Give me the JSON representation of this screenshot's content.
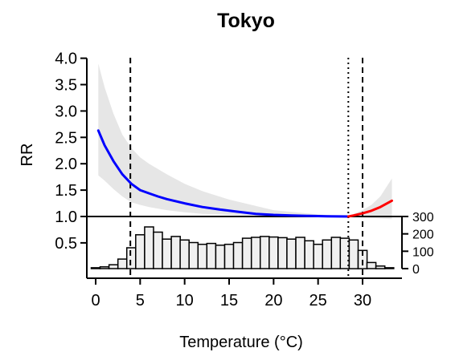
{
  "chart_data": {
    "type": "line",
    "title": "Tokyo",
    "xlabel": "Temperature (°C)",
    "ylabel": "RR",
    "xlim": [
      -0.5,
      34.5
    ],
    "ylim": [
      1.0,
      4.0
    ],
    "x_ticks": [
      0,
      5,
      10,
      15,
      20,
      25,
      30
    ],
    "y_ticks": [
      1.0,
      1.5,
      2.0,
      2.5,
      3.0,
      3.5,
      4.0
    ],
    "y_tick_labels": [
      "1.0",
      "1.5",
      "2.0",
      "2.5",
      "3.0",
      "3.5",
      "4.0"
    ],
    "extra_y_ticks": [
      0.5
    ],
    "extra_y_tick_labels": [
      "0.5"
    ],
    "mmt": 28.4,
    "dashed_lines": [
      3.9,
      30.0
    ],
    "curve_cold": {
      "color": "#0000ff",
      "x": [
        0.3,
        1,
        2,
        3,
        4,
        5,
        6,
        7,
        8,
        10,
        12,
        14,
        16,
        18,
        20,
        22,
        24,
        26,
        28.4
      ],
      "y": [
        2.63,
        2.35,
        2.05,
        1.8,
        1.62,
        1.5,
        1.44,
        1.38,
        1.33,
        1.25,
        1.18,
        1.13,
        1.09,
        1.05,
        1.03,
        1.02,
        1.01,
        1.005,
        1.0
      ]
    },
    "curve_hot": {
      "color": "#ff0000",
      "x": [
        28.4,
        29,
        30,
        31,
        32,
        33.3
      ],
      "y": [
        1.0,
        1.02,
        1.06,
        1.11,
        1.18,
        1.3
      ]
    },
    "ci": {
      "color": "#e6e6e6",
      "x": [
        0.3,
        1,
        2,
        3,
        4,
        5,
        6,
        8,
        10,
        12,
        15,
        20,
        25,
        28.4,
        29,
        30,
        31,
        32,
        33.3
      ],
      "upper": [
        3.9,
        3.45,
        2.95,
        2.55,
        2.3,
        2.12,
        2.0,
        1.8,
        1.62,
        1.48,
        1.32,
        1.12,
        1.04,
        1.0,
        1.05,
        1.12,
        1.22,
        1.38,
        1.72
      ],
      "lower": [
        1.78,
        1.68,
        1.52,
        1.38,
        1.27,
        1.22,
        1.18,
        1.12,
        1.08,
        1.05,
        1.03,
        1.01,
        1.005,
        1.0,
        0.99,
        0.98,
        0.97,
        0.96,
        0.95
      ]
    },
    "histogram": {
      "bin_width": 1,
      "bin_starts": [
        -0.5,
        0.5,
        1.5,
        2.5,
        3.5,
        4.5,
        5.5,
        6.5,
        7.5,
        8.5,
        9.5,
        10.5,
        11.5,
        12.5,
        13.5,
        14.5,
        15.5,
        16.5,
        17.5,
        18.5,
        19.5,
        20.5,
        21.5,
        22.5,
        23.5,
        24.5,
        25.5,
        26.5,
        27.5,
        28.5,
        29.5,
        30.5,
        31.5,
        32.5
      ],
      "counts": [
        5,
        10,
        22,
        55,
        120,
        195,
        240,
        210,
        170,
        185,
        165,
        150,
        140,
        145,
        135,
        140,
        150,
        175,
        180,
        185,
        182,
        178,
        170,
        180,
        160,
        140,
        165,
        180,
        175,
        165,
        105,
        35,
        15,
        5
      ],
      "ylim": [
        0,
        300
      ],
      "y_ticks": [
        0,
        100,
        200,
        300
      ],
      "y_tick_labels": [
        "0",
        "100",
        "200",
        "300"
      ]
    }
  }
}
